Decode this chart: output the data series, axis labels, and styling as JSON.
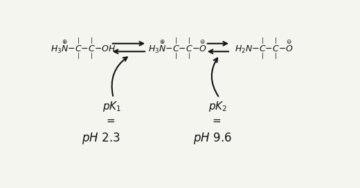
{
  "bg_color": "#f5f5f0",
  "fig_width": 5.2,
  "fig_height": 2.71,
  "dpi": 100,
  "text_color": "#111111",
  "font_size_struct": 9,
  "font_size_pk": 11,
  "font_size_ph": 12,
  "pka1_label": "$pK_1$",
  "ph1_label": "$pH\\ 2.3$",
  "pka2_label": "$pK_2$",
  "ph2_label": "$pH\\ 9.6$"
}
